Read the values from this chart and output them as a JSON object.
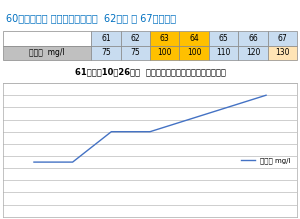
{
  "title": "60センチ水槽 硝酸塩濃度の推移  62日目 〜 67日目まで",
  "subtitle": "61日目（10月26日）  すべてのマツモを取り出しました。",
  "x_values": [
    61,
    62,
    63,
    64,
    65,
    66,
    67
  ],
  "y_values": [
    75,
    75,
    100,
    100,
    110,
    120,
    130
  ],
  "legend_label": "硝酸塩 mg/l",
  "ylim": [
    30,
    140
  ],
  "yticks": [
    30,
    40,
    50,
    60,
    70,
    80,
    90,
    100,
    110,
    120,
    130,
    140
  ],
  "line_color": "#4472C4",
  "title_color": "#0070C0",
  "table_header_row": [
    "",
    "61",
    "62",
    "63",
    "64",
    "65",
    "66",
    "67"
  ],
  "table_data_row": [
    "硝酸塩  mg/l",
    "75",
    "75",
    "100",
    "100",
    "110",
    "120",
    "130"
  ],
  "table_col_colors_header": [
    "#FFFFFF",
    "#C8DCF0",
    "#C8DCF0",
    "#FFC000",
    "#FFC000",
    "#C8DCF0",
    "#C8DCF0",
    "#C8DCF0"
  ],
  "table_col_colors_data": [
    "#C0C0C0",
    "#C8DCF0",
    "#C8DCF0",
    "#FFC000",
    "#FFC000",
    "#C8DCF0",
    "#C8DCF0",
    "#FFE4B5"
  ],
  "bg_color": "#FFFFFF",
  "plot_bg_color": "#FFFFFF",
  "grid_color": "#BBBBBB"
}
